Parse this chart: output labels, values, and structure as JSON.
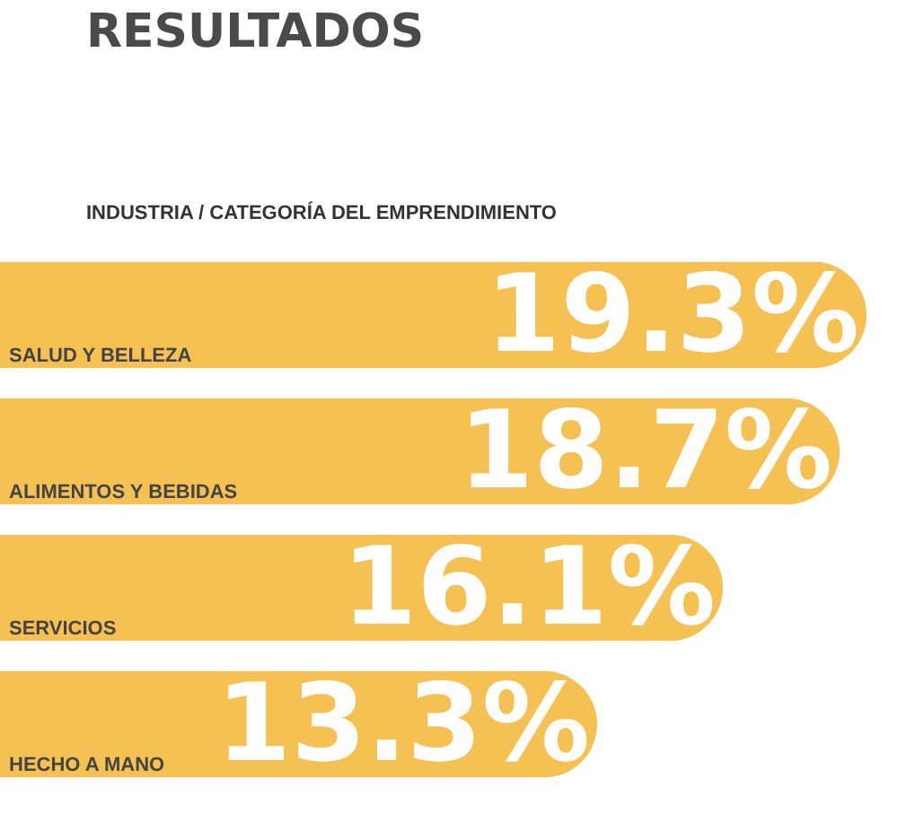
{
  "chart_data": {
    "type": "bar",
    "orientation": "horizontal",
    "title": "RESULTADOS",
    "subtitle": "INDUSTRIA / CATEGORÍA DEL EMPRENDIMIENTO",
    "categories": [
      "SALUD Y BELLEZA",
      "ALIMENTOS Y BEBIDAS",
      "SERVICIOS",
      "HECHO A MANO"
    ],
    "values": [
      19.3,
      18.7,
      16.1,
      13.3
    ],
    "value_labels": [
      "19.3%",
      "18.7%",
      "16.1%",
      "13.3%"
    ],
    "color": "#f5c152",
    "xlim": [
      0,
      20
    ]
  }
}
